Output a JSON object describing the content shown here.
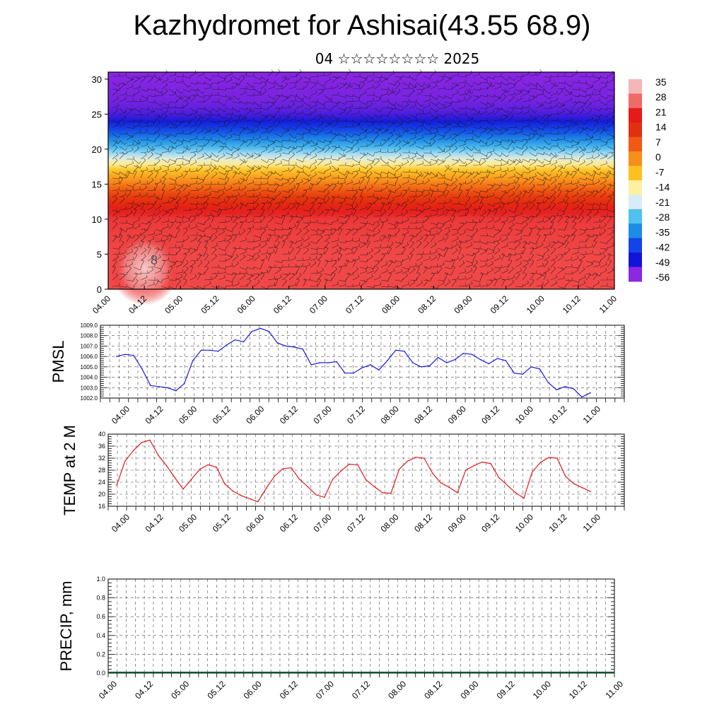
{
  "title": "Kazhydromet for Ashisai(43.55 68.9)",
  "subtitle": "04 ☆☆☆☆☆☆☆☆ 2025",
  "chart_data": [
    {
      "type": "heatmap",
      "ylim": [
        0,
        31
      ],
      "yticks": [
        "0",
        "5",
        "10",
        "15",
        "20",
        "25",
        "30"
      ],
      "xticks": [
        "04.00",
        "04.12",
        "05.00",
        "05.12",
        "06.00",
        "06.12",
        "07.00",
        "07.12",
        "08.00",
        "08.12",
        "09.00",
        "09.12",
        "10.00",
        "10.12",
        "11.00"
      ],
      "colorbar": {
        "labels": [
          "35",
          "28",
          "21",
          "14",
          "7",
          "0",
          "-7",
          "-14",
          "-21",
          "-28",
          "-35",
          "-42",
          "-49",
          "-56"
        ],
        "colors": [
          "#f4b6b6",
          "#f06a6a",
          "#e61a1a",
          "#e03010",
          "#f05a14",
          "#f6901c",
          "#fcc020",
          "#fff0a0",
          "#d8ecf8",
          "#50c0ee",
          "#1c8ce4",
          "#1444e8",
          "#1414d8",
          "#8c28e0"
        ]
      },
      "level_temps": [
        [
          0,
          30
        ],
        [
          5,
          30
        ],
        [
          10,
          28
        ],
        [
          14,
          14
        ],
        [
          17,
          0
        ],
        [
          19,
          -14
        ],
        [
          21,
          -28
        ],
        [
          23.5,
          -45
        ],
        [
          25,
          -56
        ],
        [
          27,
          -60
        ],
        [
          31,
          -62
        ]
      ],
      "annotation": "8"
    },
    {
      "type": "line",
      "ylabel": "PMSL",
      "ylim": [
        1002.0,
        1009.0
      ],
      "yticks": [
        "1002.0",
        "1003.0",
        "1004.0",
        "1005.0",
        "1006.0",
        "1007.0",
        "1008.0",
        "1009.0"
      ],
      "xticks": [
        "04.00",
        "04.12",
        "05.00",
        "05.12",
        "06.00",
        "06.12",
        "07.00",
        "07.12",
        "08.00",
        "08.12",
        "09.00",
        "09.12",
        "10.00",
        "10.12",
        "11.00"
      ],
      "color": "#1a1adc",
      "values": [
        1006.0,
        1006.2,
        1006.1,
        1004.8,
        1003.2,
        1003.1,
        1003.0,
        1002.7,
        1003.4,
        1005.6,
        1006.6,
        1006.6,
        1006.5,
        1007.1,
        1007.6,
        1007.4,
        1008.4,
        1008.7,
        1008.4,
        1007.3,
        1007.0,
        1006.9,
        1006.7,
        1005.2,
        1005.4,
        1005.4,
        1005.5,
        1004.4,
        1004.4,
        1004.9,
        1005.2,
        1004.7,
        1005.6,
        1006.6,
        1006.5,
        1005.4,
        1005.0,
        1005.1,
        1005.9,
        1005.4,
        1005.7,
        1006.3,
        1006.2,
        1005.7,
        1005.3,
        1005.8,
        1005.6,
        1004.4,
        1004.3,
        1005.0,
        1004.8,
        1003.5,
        1002.8,
        1003.1,
        1002.9,
        1002.1,
        1002.5
      ]
    },
    {
      "type": "line",
      "ylabel": "TEMP at 2 M",
      "ylim": [
        16,
        40
      ],
      "yticks": [
        "16",
        "20",
        "24",
        "28",
        "32",
        "36",
        "40"
      ],
      "xticks": [
        "04.00",
        "04.12",
        "05.00",
        "05.12",
        "06.00",
        "06.12",
        "07.00",
        "07.12",
        "08.00",
        "08.12",
        "09.00",
        "09.12",
        "10.00",
        "10.12",
        "11.00"
      ],
      "color": "#e41a1a",
      "values": [
        23.0,
        31.0,
        34.5,
        37.2,
        38.0,
        33.0,
        29.5,
        25.5,
        21.7,
        25.0,
        28.3,
        29.8,
        29.0,
        23.5,
        21.0,
        19.5,
        18.5,
        17.5,
        22.0,
        26.0,
        28.5,
        28.8,
        25.0,
        22.5,
        19.8,
        19.0,
        25.0,
        27.8,
        30.0,
        29.8,
        24.8,
        22.5,
        20.5,
        20.3,
        28.3,
        31.0,
        32.3,
        32.0,
        27.0,
        23.8,
        22.3,
        20.5,
        28.0,
        29.5,
        30.7,
        30.2,
        25.5,
        23.0,
        20.5,
        18.7,
        27.4,
        30.6,
        32.2,
        32.0,
        26.0,
        23.5,
        22.2,
        20.9
      ]
    },
    {
      "type": "bar",
      "ylabel": "PRECIP, mm",
      "ylim": [
        0,
        1.0
      ],
      "yticks": [
        "0.0",
        "0.2",
        "0.4",
        "0.6",
        "0.8",
        "1.0"
      ],
      "xticks": [
        "04.00",
        "04.12",
        "05.00",
        "05.12",
        "06.00",
        "06.12",
        "07.00",
        "07.12",
        "08.00",
        "08.12",
        "09.00",
        "09.12",
        "10.00",
        "10.12",
        "11.00"
      ],
      "values": []
    }
  ]
}
